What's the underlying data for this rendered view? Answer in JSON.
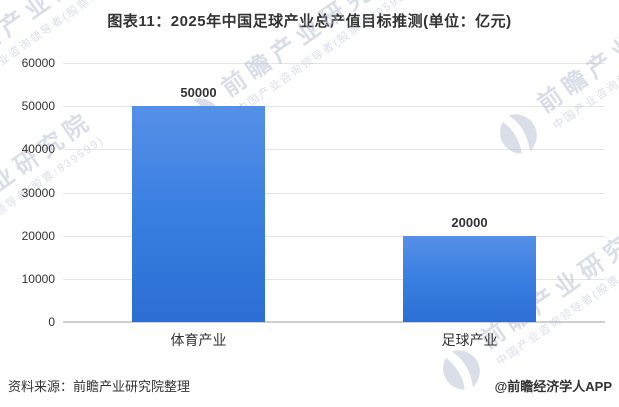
{
  "title": "图表11：2025年中国足球产业总产值目标推测(单位：亿元)",
  "chart_data": {
    "type": "bar",
    "title": "图表11：2025年中国足球产业总产值目标推测(单位：亿元)",
    "unit": "亿元",
    "categories": [
      "体育产业",
      "足球产业"
    ],
    "values": [
      50000,
      20000
    ],
    "value_labels": [
      "50000",
      "20000"
    ],
    "xlabel": "",
    "ylabel": "",
    "ylim": [
      0,
      60000
    ],
    "yticks": [
      0,
      10000,
      20000,
      30000,
      40000,
      50000,
      60000
    ],
    "grid": true,
    "legend": false,
    "bar_color_top": "#5590e8",
    "bar_color_bottom": "#2c6ed4",
    "gridline_color": "#e4e5e7",
    "baseline_color": "#cfd0d3"
  },
  "footer": {
    "source": "资料来源：前瞻产业研究院整理",
    "credit": "@前瞻经济学人APP"
  },
  "watermark": {
    "logo_icon": "qianzhan-swoosh-icon",
    "text": "前瞻产业研究院",
    "subtext": "中国产业咨询领导者(股票:839599)"
  }
}
